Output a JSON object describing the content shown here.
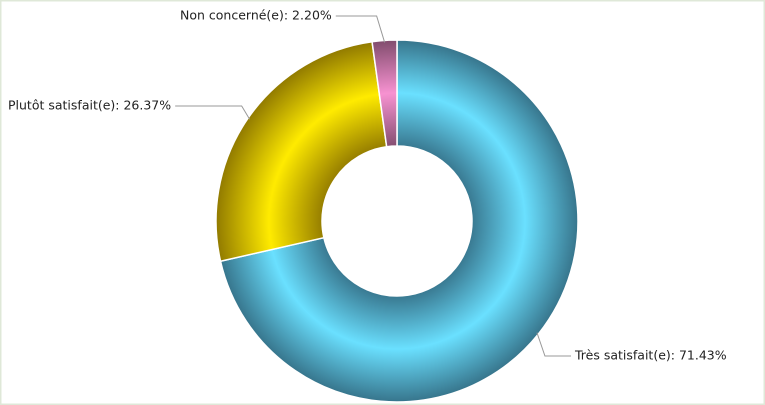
{
  "chart_data": {
    "type": "donut",
    "value_labels": [
      "Très satisfait(e): 71.43%",
      "Plutôt satisfait(e): 26.37%",
      "Non concerné(e): 2.20%"
    ],
    "values": [
      71.43,
      26.37,
      2.2
    ],
    "colors": [
      "#5cc3ea",
      "#f2cc00",
      "#d77fb6"
    ]
  }
}
